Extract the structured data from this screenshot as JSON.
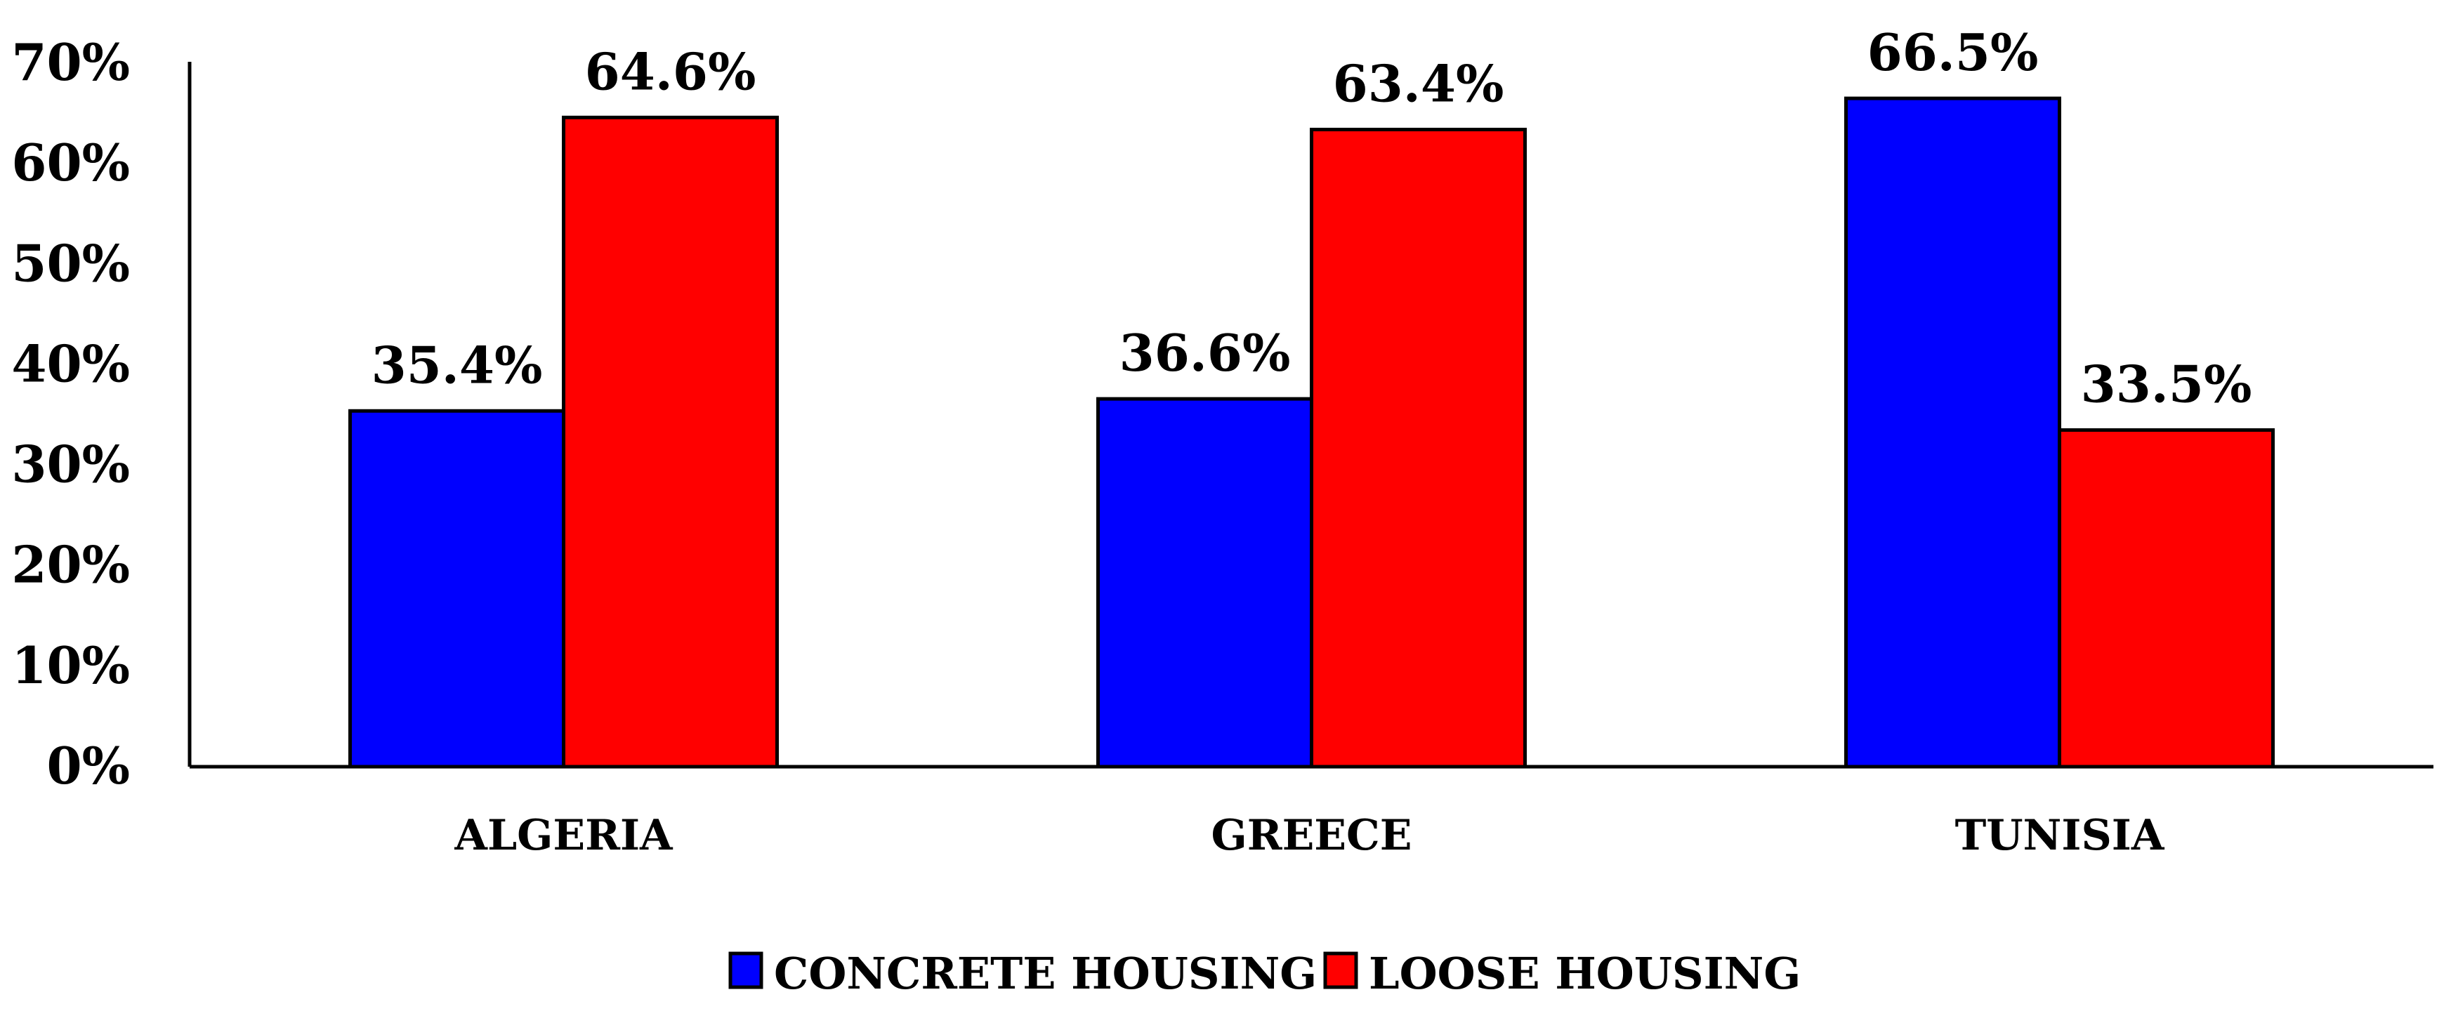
{
  "chart_data": {
    "type": "bar",
    "categories": [
      "ALGERIA",
      "GREECE",
      "TUNISIA"
    ],
    "series": [
      {
        "name": "CONCRETE HOUSING",
        "color": "#0000FF",
        "values": [
          35.4,
          36.6,
          66.5
        ],
        "labels": [
          "35.4%",
          "36.6%",
          "66.5%"
        ]
      },
      {
        "name": "LOOSE HOUSING",
        "color": "#FF0000",
        "values": [
          64.6,
          63.4,
          33.5
        ],
        "labels": [
          "64.6%",
          "63.4%",
          "33.5%"
        ]
      }
    ],
    "ylim": [
      0,
      70
    ],
    "yticks": [
      "0%",
      "10%",
      "20%",
      "30%",
      "40%",
      "50%",
      "60%",
      "70%"
    ],
    "title": "",
    "xlabel": "",
    "ylabel": "",
    "grid": false,
    "legend": "bottom"
  }
}
